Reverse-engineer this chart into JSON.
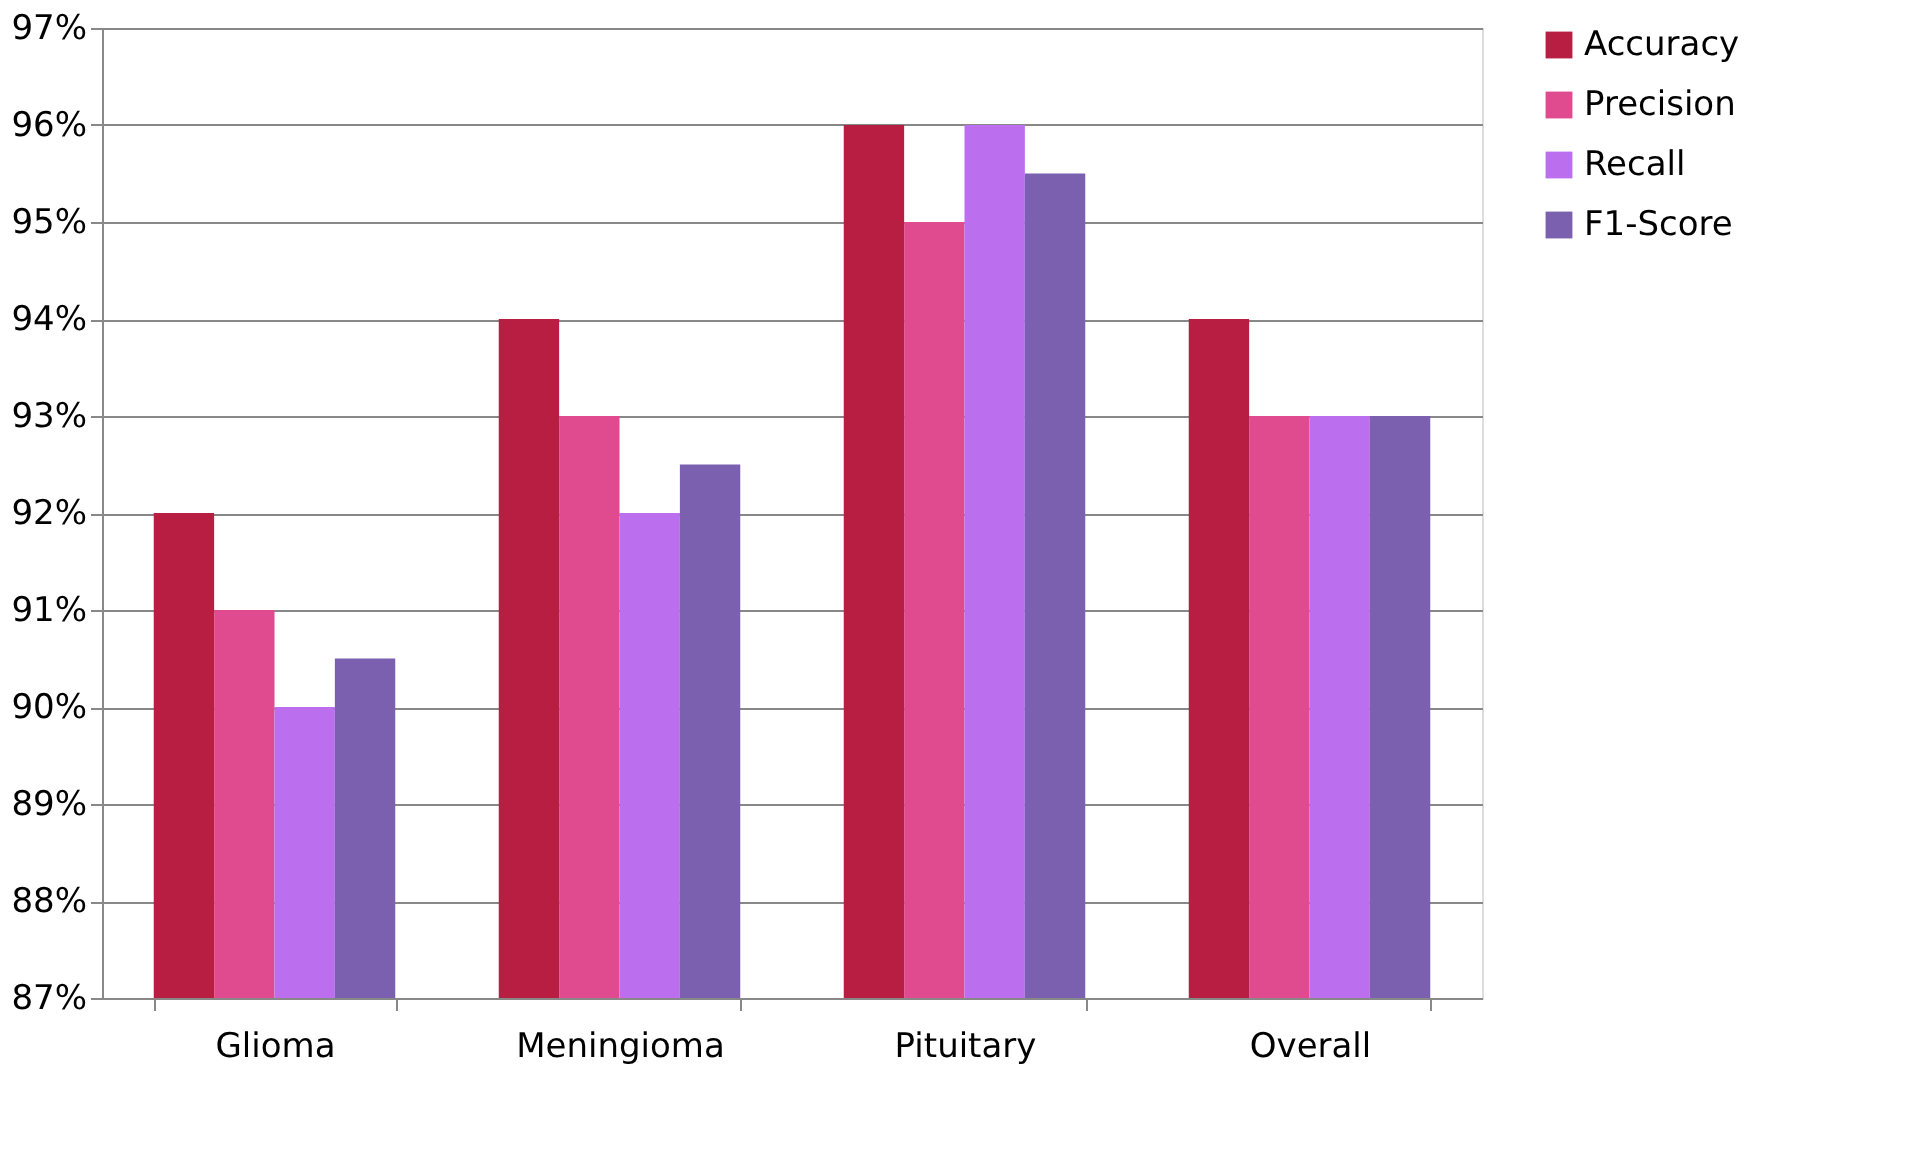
{
  "chart_data": {
    "type": "bar",
    "categories": [
      "Glioma",
      "Meningioma",
      "Pituitary",
      "Overall"
    ],
    "series": [
      {
        "name": "Accuracy",
        "color": "#b81e42",
        "values": [
          92,
          94,
          96,
          94
        ]
      },
      {
        "name": "Precision",
        "color": "#e04a8e",
        "values": [
          91,
          93,
          95,
          93
        ]
      },
      {
        "name": "Recall",
        "color": "#bb6fef",
        "values": [
          90,
          92,
          96,
          93
        ]
      },
      {
        "name": "F1-Score",
        "color": "#7b60b0",
        "values": [
          90.5,
          92.5,
          95.5,
          93
        ]
      }
    ],
    "ylim": [
      87,
      97
    ],
    "yticks": [
      {
        "value": 87,
        "label": "87%"
      },
      {
        "value": 88,
        "label": "88%"
      },
      {
        "value": 89,
        "label": "89%"
      },
      {
        "value": 90,
        "label": "90%"
      },
      {
        "value": 91,
        "label": "91%"
      },
      {
        "value": 92,
        "label": "92%"
      },
      {
        "value": 93,
        "label": "93%"
      },
      {
        "value": 94,
        "label": "94%"
      },
      {
        "value": 95,
        "label": "95%"
      },
      {
        "value": 96,
        "label": "96%"
      },
      {
        "value": 97,
        "label": "97%"
      }
    ],
    "grid": "y",
    "legend": "right"
  }
}
